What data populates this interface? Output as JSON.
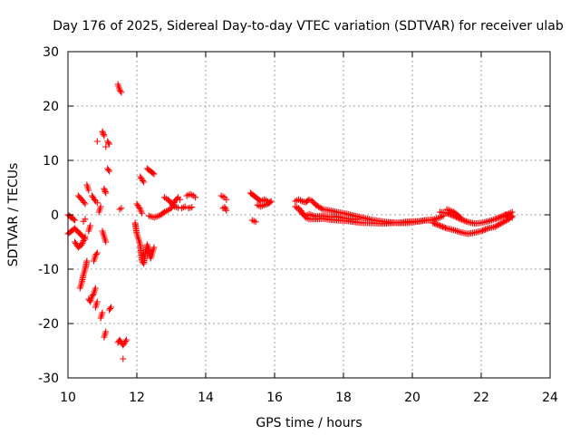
{
  "chart_data": {
    "type": "scatter",
    "title": "Day 176 of 2025, Sidereal Day-to-day VTEC variation (SDTVAR) for receiver ulab",
    "xlabel": "GPS time / hours",
    "ylabel": "SDTVAR / TECUs",
    "xlim": [
      10,
      24
    ],
    "ylim": [
      -30,
      30
    ],
    "x_ticks": [
      10,
      12,
      14,
      16,
      18,
      20,
      22,
      24
    ],
    "y_ticks": [
      -30,
      -20,
      -10,
      0,
      10,
      20,
      30
    ],
    "x_tick_labels": [
      "10",
      "12",
      "14",
      "16",
      "18",
      "20",
      "22",
      "24"
    ],
    "y_tick_labels": [
      "-30",
      "-20",
      "-10",
      "0",
      "10",
      "20",
      "30"
    ],
    "grid": true,
    "marker": "+",
    "color": "#ff0000",
    "series": [
      {
        "name": "SDTVAR",
        "segments": [
          [
            [
              10.0,
              -3.5
            ],
            [
              10.1,
              -3.0
            ],
            [
              10.2,
              -2.5
            ],
            [
              10.3,
              -3.2
            ],
            [
              10.4,
              -3.8
            ],
            [
              10.5,
              -4.5
            ]
          ],
          [
            [
              10.0,
              0.0
            ],
            [
              10.1,
              -0.5
            ],
            [
              10.2,
              -1.0
            ]
          ],
          [
            [
              10.2,
              -5.0
            ],
            [
              10.3,
              -6.0
            ],
            [
              10.4,
              -5.5
            ],
            [
              10.5,
              -4.0
            ]
          ],
          [
            [
              10.3,
              3.5
            ],
            [
              10.4,
              2.8
            ],
            [
              10.5,
              2.0
            ]
          ],
          [
            [
              10.35,
              -13.5
            ],
            [
              10.4,
              -12.5
            ],
            [
              10.45,
              -11.0
            ],
            [
              10.5,
              -10.0
            ],
            [
              10.55,
              -8.5
            ]
          ],
          [
            [
              10.45,
              -1.2
            ],
            [
              10.5,
              -0.8
            ]
          ],
          [
            [
              10.55,
              5.5
            ],
            [
              10.6,
              4.5
            ]
          ],
          [
            [
              10.6,
              -3.0
            ],
            [
              10.65,
              -2.0
            ]
          ],
          [
            [
              10.6,
              -15.5
            ],
            [
              10.65,
              -16.0
            ],
            [
              10.7,
              -15.0
            ],
            [
              10.75,
              -14.5
            ],
            [
              10.8,
              -13.5
            ]
          ],
          [
            [
              10.7,
              3.5
            ],
            [
              10.75,
              3.0
            ],
            [
              10.8,
              2.5
            ],
            [
              10.85,
              2.2
            ]
          ],
          [
            [
              10.75,
              -8.5
            ],
            [
              10.8,
              -7.5
            ],
            [
              10.85,
              -7.0
            ]
          ],
          [
            [
              10.8,
              -17.0
            ],
            [
              10.85,
              -16.0
            ]
          ],
          [
            [
              10.85,
              13.5
            ]
          ],
          [
            [
              10.9,
              0.5
            ],
            [
              10.95,
              1.5
            ]
          ],
          [
            [
              10.95,
              -19.0
            ],
            [
              11.0,
              -18.0
            ]
          ],
          [
            [
              11.0,
              -3.0
            ],
            [
              11.05,
              -4.0
            ],
            [
              11.1,
              -5.0
            ]
          ],
          [
            [
              11.0,
              15.3
            ],
            [
              11.05,
              14.5
            ]
          ],
          [
            [
              11.05,
              4.8
            ],
            [
              11.1,
              4.0
            ]
          ],
          [
            [
              11.05,
              -22.5
            ],
            [
              11.1,
              -21.5
            ]
          ],
          [
            [
              11.1,
              12.5
            ]
          ],
          [
            [
              11.15,
              13.5
            ],
            [
              11.2,
              13.0
            ]
          ],
          [
            [
              11.15,
              8.5
            ],
            [
              11.2,
              8.0
            ]
          ],
          [
            [
              11.2,
              -17.5
            ],
            [
              11.25,
              -17.0
            ]
          ],
          [
            [
              11.45,
              24.0
            ],
            [
              11.5,
              23.0
            ],
            [
              11.55,
              22.5
            ]
          ],
          [
            [
              11.5,
              1.0
            ],
            [
              11.55,
              1.2
            ]
          ],
          [
            [
              11.45,
              -23.5
            ],
            [
              11.5,
              -23.0
            ],
            [
              11.6,
              -24.0
            ],
            [
              11.7,
              -23.0
            ]
          ],
          [
            [
              11.6,
              -26.5
            ]
          ],
          [
            [
              11.95,
              -1.5
            ],
            [
              12.0,
              -3.5
            ],
            [
              12.05,
              -4.5
            ],
            [
              12.1,
              -5.5
            ],
            [
              12.15,
              -8.5
            ],
            [
              12.2,
              -9.0
            ],
            [
              12.25,
              -7.0
            ],
            [
              12.3,
              -5.5
            ],
            [
              12.35,
              -6.5
            ],
            [
              12.4,
              -8.0
            ],
            [
              12.45,
              -7.0
            ],
            [
              12.5,
              -6.0
            ]
          ],
          [
            [
              12.0,
              2.0
            ],
            [
              12.1,
              1.0
            ],
            [
              12.15,
              0.3
            ]
          ],
          [
            [
              12.1,
              7.0
            ],
            [
              12.15,
              6.5
            ],
            [
              12.2,
              6.0
            ]
          ],
          [
            [
              12.3,
              8.5
            ],
            [
              12.4,
              8.0
            ],
            [
              12.5,
              7.5
            ]
          ],
          [
            [
              12.35,
              -0.2
            ],
            [
              12.5,
              -0.5
            ],
            [
              12.6,
              -0.3
            ],
            [
              12.7,
              0.0
            ],
            [
              12.8,
              0.5
            ],
            [
              12.9,
              0.8
            ],
            [
              13.0,
              1.2
            ],
            [
              13.1,
              2.5
            ],
            [
              13.2,
              3.2
            ],
            [
              13.25,
              2.8
            ]
          ],
          [
            [
              12.8,
              3.2
            ],
            [
              12.9,
              2.8
            ],
            [
              13.0,
              2.2
            ],
            [
              13.1,
              1.5
            ],
            [
              13.2,
              1.3
            ]
          ],
          [
            [
              13.3,
              1.2
            ],
            [
              13.4,
              1.5
            ]
          ],
          [
            [
              13.45,
              3.5
            ],
            [
              13.55,
              3.8
            ],
            [
              13.65,
              3.5
            ],
            [
              13.7,
              3.2
            ]
          ],
          [
            [
              13.5,
              1.2
            ],
            [
              13.6,
              1.4
            ]
          ],
          [
            [
              14.45,
              3.5
            ],
            [
              14.55,
              3.2
            ],
            [
              14.6,
              2.8
            ]
          ],
          [
            [
              14.5,
              1.2
            ],
            [
              14.55,
              1.4
            ],
            [
              14.6,
              0.8
            ]
          ],
          [
            [
              15.3,
              4.0
            ],
            [
              15.4,
              3.5
            ],
            [
              15.5,
              3.0
            ],
            [
              15.6,
              2.5
            ],
            [
              15.7,
              2.8
            ],
            [
              15.8,
              2.5
            ],
            [
              15.85,
              2.2
            ]
          ],
          [
            [
              15.35,
              -1.0
            ],
            [
              15.45,
              -1.3
            ]
          ],
          [
            [
              15.5,
              1.8
            ],
            [
              15.6,
              1.5
            ],
            [
              15.7,
              1.8
            ],
            [
              15.8,
              2.0
            ],
            [
              15.9,
              2.5
            ]
          ],
          [
            [
              16.6,
              1.5
            ],
            [
              16.7,
              1.2
            ],
            [
              16.8,
              0.5
            ],
            [
              16.9,
              -0.5
            ],
            [
              17.0,
              -0.8
            ],
            [
              17.2,
              -0.8
            ],
            [
              17.4,
              -0.7
            ],
            [
              17.6,
              -0.9
            ],
            [
              17.8,
              -1.0
            ],
            [
              18.0,
              -1.1
            ],
            [
              18.2,
              -1.2
            ],
            [
              18.4,
              -1.4
            ],
            [
              18.6,
              -1.5
            ],
            [
              18.8,
              -1.5
            ],
            [
              19.0,
              -1.6
            ],
            [
              19.2,
              -1.6
            ],
            [
              19.4,
              -1.5
            ],
            [
              19.6,
              -1.5
            ],
            [
              19.8,
              -1.3
            ],
            [
              20.0,
              -1.2
            ],
            [
              20.2,
              -1.2
            ],
            [
              20.4,
              -1.0
            ],
            [
              20.6,
              -0.9
            ],
            [
              20.8,
              -0.5
            ],
            [
              20.9,
              -0.2
            ]
          ],
          [
            [
              16.6,
              2.5
            ],
            [
              16.7,
              2.8
            ],
            [
              16.8,
              2.5
            ],
            [
              16.9,
              2.3
            ],
            [
              17.0,
              2.8
            ],
            [
              17.1,
              2.5
            ],
            [
              17.2,
              1.8
            ],
            [
              17.4,
              1.0
            ],
            [
              17.6,
              0.8
            ],
            [
              17.8,
              0.5
            ],
            [
              18.0,
              0.3
            ],
            [
              18.2,
              0.0
            ],
            [
              18.4,
              -0.3
            ],
            [
              18.6,
              -0.6
            ],
            [
              18.8,
              -0.9
            ],
            [
              19.0,
              -1.1
            ],
            [
              19.2,
              -1.3
            ],
            [
              19.4,
              -1.4
            ],
            [
              19.6,
              -1.5
            ],
            [
              19.8,
              -1.5
            ],
            [
              20.0,
              -1.4
            ],
            [
              20.2,
              -1.2
            ],
            [
              20.4,
              -1.0
            ],
            [
              20.6,
              -1.0
            ]
          ],
          [
            [
              16.7,
              1.0
            ],
            [
              16.8,
              0.2
            ],
            [
              16.9,
              -0.2
            ],
            [
              17.0,
              0.1
            ],
            [
              17.2,
              -0.3
            ],
            [
              17.4,
              -0.2
            ],
            [
              17.6,
              -0.4
            ],
            [
              17.8,
              -0.3
            ],
            [
              18.0,
              -0.6
            ],
            [
              18.2,
              -0.8
            ],
            [
              18.4,
              -0.8
            ]
          ],
          [
            [
              20.6,
              -1.5
            ],
            [
              20.8,
              -2.0
            ],
            [
              21.0,
              -2.5
            ],
            [
              21.2,
              -2.8
            ],
            [
              21.4,
              -3.2
            ],
            [
              21.6,
              -3.5
            ],
            [
              21.8,
              -3.3
            ],
            [
              22.0,
              -3.0
            ],
            [
              22.2,
              -2.5
            ],
            [
              22.4,
              -2.2
            ],
            [
              22.6,
              -1.5
            ],
            [
              22.8,
              -0.8
            ],
            [
              22.9,
              -0.2
            ]
          ],
          [
            [
              20.8,
              0.5
            ],
            [
              21.0,
              0.3
            ],
            [
              21.2,
              -0.2
            ],
            [
              21.4,
              -0.8
            ],
            [
              21.6,
              -1.3
            ],
            [
              21.8,
              -1.6
            ],
            [
              22.0,
              -1.5
            ],
            [
              22.2,
              -1.2
            ],
            [
              22.4,
              -0.8
            ],
            [
              22.6,
              -0.3
            ],
            [
              22.8,
              0.2
            ],
            [
              22.9,
              0.5
            ]
          ],
          [
            [
              21.0,
              1.0
            ],
            [
              21.1,
              0.8
            ],
            [
              21.2,
              0.5
            ],
            [
              21.3,
              0.0
            ],
            [
              21.4,
              -0.5
            ]
          ],
          [
            [
              22.7,
              0.0
            ],
            [
              22.8,
              -0.3
            ],
            [
              22.9,
              -0.5
            ]
          ]
        ]
      }
    ]
  }
}
